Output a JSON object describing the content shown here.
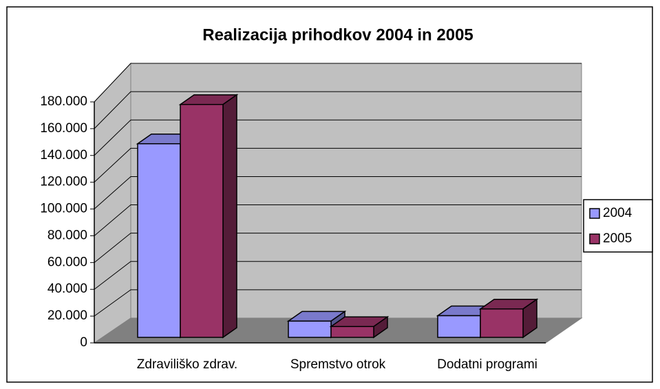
{
  "chart_data": {
    "type": "bar3d",
    "title": "Realizacija prihodkov 2004 in 2005",
    "categories": [
      "Zdraviliško zdrav.",
      "Spremstvo otrok",
      "Dodatni programi"
    ],
    "series": [
      {
        "name": "2004",
        "color": "#9999ff",
        "values": [
          143000,
          12000,
          16000
        ]
      },
      {
        "name": "2005",
        "color": "#993366",
        "values": [
          172000,
          8000,
          21000
        ]
      }
    ],
    "ylim": [
      0,
      180000
    ],
    "yticks": [
      0,
      {
        "value": 20000,
        "label": "20.000"
      },
      {
        "value": 40000,
        "label": "40.000"
      },
      {
        "value": 60000,
        "label": "60.000"
      },
      {
        "value": 80000,
        "label": "80.000"
      },
      {
        "value": 100000,
        "label": "100.000"
      },
      {
        "value": 120000,
        "label": "120.000"
      },
      {
        "value": 140000,
        "label": "140.000"
      },
      {
        "value": 160000,
        "label": "160.000"
      },
      {
        "value": 180000,
        "label": "180.000"
      }
    ],
    "grid": true,
    "legend": "right"
  }
}
